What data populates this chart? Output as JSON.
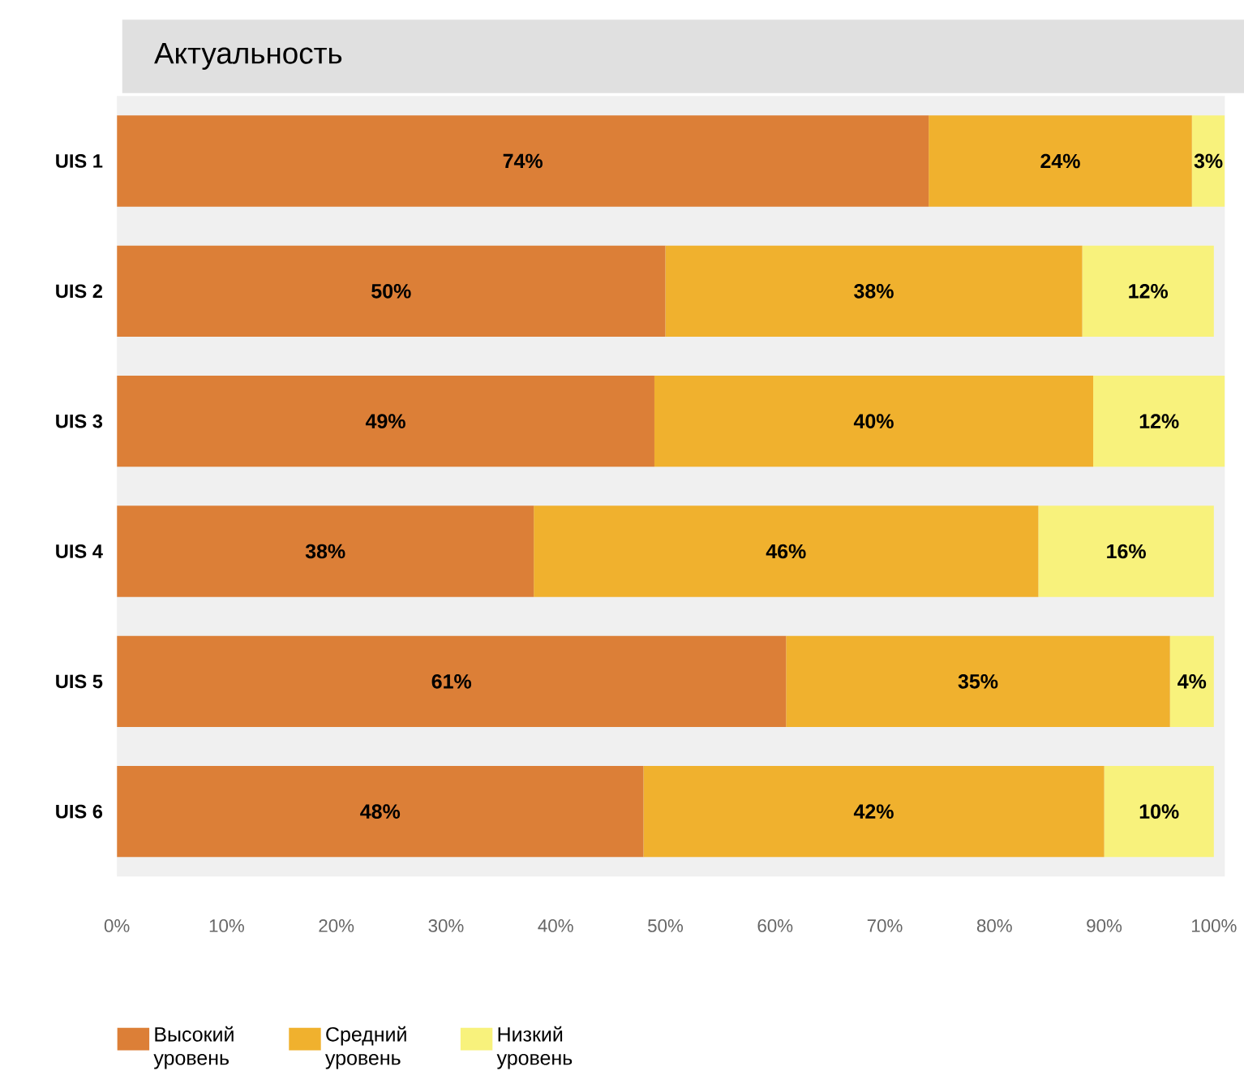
{
  "chart_data": {
    "type": "bar",
    "orientation": "horizontal",
    "stacked": true,
    "title": "Актуальность",
    "categories": [
      "UIS 1",
      "UIS 2",
      "UIS 3",
      "UIS 4",
      "UIS 5",
      "UIS 6"
    ],
    "series": [
      {
        "name": "Высокий уровень",
        "color": "#dc7f37",
        "values": [
          74,
          50,
          49,
          38,
          61,
          48
        ],
        "value_labels": [
          "74%",
          "50%",
          "49%",
          "38%",
          "61%",
          "48%"
        ]
      },
      {
        "name": "Средний уровень",
        "color": "#f0b12e",
        "values": [
          24,
          38,
          40,
          46,
          35,
          42
        ],
        "value_labels": [
          "24%",
          "38%",
          "40%",
          "46%",
          "35%",
          "42%"
        ]
      },
      {
        "name": "Низкий уровень",
        "color": "#f8f27c",
        "values": [
          3,
          12,
          12,
          16,
          4,
          10
        ],
        "value_labels": [
          "3%",
          "12%",
          "12%",
          "16%",
          "4%",
          "10%"
        ]
      }
    ],
    "xlim": [
      0,
      101
    ],
    "xticks": [
      {
        "value": 0,
        "label": "0%"
      },
      {
        "value": 10,
        "label": "10%"
      },
      {
        "value": 20,
        "label": "20%"
      },
      {
        "value": 30,
        "label": "30%"
      },
      {
        "value": 40,
        "label": "40%"
      },
      {
        "value": 50,
        "label": "50%"
      },
      {
        "value": 60,
        "label": "60%"
      },
      {
        "value": 70,
        "label": "70%"
      },
      {
        "value": 80,
        "label": "80%"
      },
      {
        "value": 90,
        "label": "90%"
      },
      {
        "value": 100,
        "label": "100%"
      }
    ],
    "legend": "bottom left"
  }
}
